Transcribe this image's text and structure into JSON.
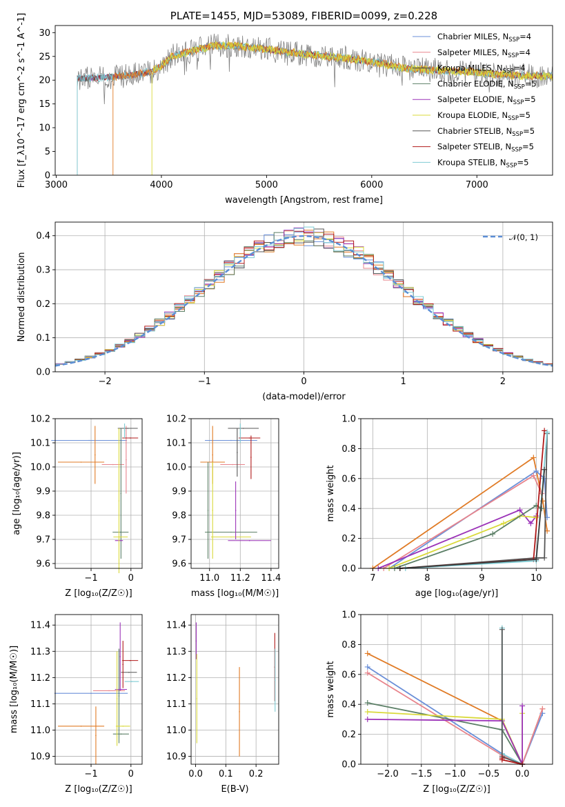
{
  "colors": {
    "chabrier_miles": "#6a8fd8",
    "salpeter_miles": "#e8848c",
    "kroupa_miles": "#3b3b3b",
    "chabrier_elodie": "#5b7f66",
    "salpeter_elodie": "#9b32b8",
    "kroupa_elodie": "#d9d93a",
    "chabrier_stelib": "#555555",
    "salpeter_stelib": "#b01818",
    "kroupa_stelib": "#7ecbd3",
    "orange": "#e07a24",
    "gray_spec": "#808080",
    "normal_curve": "#5b8ed6"
  },
  "chart_data": [
    {
      "id": "spectrum",
      "type": "line",
      "title": "PLATE=1455, MJD=53089, FIBERID=0099, z=0.228",
      "xlabel": "wavelength [Angstrom, rest frame]",
      "ylabel": "Flux [f_λ10^-17 erg cm^-2 s^-1 A^-1]",
      "xlim": [
        2990,
        7720
      ],
      "ylim": [
        0,
        31.5
      ],
      "xticks": [
        "3000",
        "4000",
        "5000",
        "6000",
        "7000"
      ],
      "yticks": [
        "0",
        "5",
        "10",
        "15",
        "20",
        "25",
        "30"
      ],
      "legend_position": "top-right",
      "legend": [
        {
          "label": "Chabrier MILES, N",
          "sub": "SSP",
          "tail": "=4",
          "color_key": "chabrier_miles"
        },
        {
          "label": "Salpeter MILES, N",
          "sub": "SSP",
          "tail": "=4",
          "color_key": "salpeter_miles"
        },
        {
          "label": "Kroupa MILES, N",
          "sub": "SSP",
          "tail": "=4",
          "color_key": "kroupa_miles"
        },
        {
          "label": "Chabrier ELODIE, N",
          "sub": "SSP",
          "tail": "=5",
          "color_key": "chabrier_elodie"
        },
        {
          "label": "Salpeter ELODIE, N",
          "sub": "SSP",
          "tail": "=5",
          "color_key": "salpeter_elodie"
        },
        {
          "label": "Kroupa ELODIE, N",
          "sub": "SSP",
          "tail": "=5",
          "color_key": "kroupa_elodie"
        },
        {
          "label": "Chabrier STELIB, N",
          "sub": "SSP",
          "tail": "=5",
          "color_key": "chabrier_stelib"
        },
        {
          "label": "Salpeter STELIB, N",
          "sub": "SSP",
          "tail": "=5",
          "color_key": "salpeter_stelib"
        },
        {
          "label": "Kroupa STELIB, N",
          "sub": "SSP",
          "tail": "=5",
          "color_key": "kroupa_stelib"
        }
      ],
      "continuum_x": [
        3200,
        3400,
        3700,
        3900,
        4000,
        4100,
        4300,
        4500,
        4700,
        5000,
        5300,
        5600,
        5900,
        6100,
        6300,
        6500,
        6700,
        6900,
        7100,
        7400,
        7700
      ],
      "continuum_y": [
        20.3,
        20.5,
        21.0,
        21.8,
        23.0,
        25.0,
        26.2,
        27.3,
        27.2,
        26.5,
        25.6,
        25.0,
        24.2,
        23.5,
        22.5,
        22.2,
        22.0,
        21.8,
        21.4,
        21.0,
        20.8
      ],
      "series_start": [
        {
          "color_key": "gray_spec",
          "start": 3200
        },
        {
          "color_key": "kroupa_stelib",
          "start": 3200
        },
        {
          "color_key": "orange",
          "start": 3540
        },
        {
          "color_key": "kroupa_elodie",
          "start": 3910
        }
      ]
    },
    {
      "id": "residual_hist",
      "type": "histogram",
      "xlabel": "(data-model)/error",
      "ylabel": "Normed distribution",
      "xlim": [
        -2.5,
        2.5
      ],
      "ylim": [
        0,
        0.44
      ],
      "xticks": [
        "−2",
        "−1",
        "0",
        "1",
        "2"
      ],
      "yticks": [
        "0.0",
        "0.1",
        "0.2",
        "0.3",
        "0.4"
      ],
      "legend": "𝒩(0, 1)",
      "legend_position": "top-right",
      "bin_width": 0.1,
      "normal_mean": 0,
      "normal_sigma": 1
    },
    {
      "id": "age_vs_Z",
      "type": "errorbar",
      "xlabel": "Z [log₁₀(Z/Z☉)]",
      "ylabel": "age  [log₁₀(age/yr)]",
      "xlim": [
        -1.9,
        0.28
      ],
      "ylim": [
        9.58,
        10.2
      ],
      "xticks": [
        "−1",
        "0"
      ],
      "yticks": [
        "9.6",
        "9.7",
        "9.8",
        "9.9",
        "10.0",
        "10.1",
        "10.2"
      ],
      "points": [
        {
          "x": -1.05,
          "xerr": 0.95,
          "y": 10.11,
          "yerr": 0,
          "color_key": "chabrier_miles"
        },
        {
          "x": -1.25,
          "xerr": 0.58,
          "y": 10.02,
          "yerr": 0,
          "color_key": "orange"
        },
        {
          "x": -0.9,
          "xerr": 0,
          "y": 10.05,
          "yerr": 0.12,
          "color_key": "orange"
        },
        {
          "x": -0.45,
          "xerr": 0.28,
          "y": 10.01,
          "yerr": 0,
          "color_key": "salpeter_miles"
        },
        {
          "x": -0.12,
          "xerr": 0,
          "y": 10.03,
          "yerr": 0.14,
          "color_key": "salpeter_miles"
        },
        {
          "x": -0.08,
          "xerr": 0.25,
          "y": 10.16,
          "yerr": 0,
          "color_key": "chabrier_stelib"
        },
        {
          "x": -0.02,
          "xerr": 0.2,
          "y": 10.12,
          "yerr": 0,
          "color_key": "salpeter_stelib"
        },
        {
          "x": -0.16,
          "xerr": 0,
          "y": 10.15,
          "yerr": 0.03,
          "color_key": "kroupa_stelib"
        },
        {
          "x": -0.25,
          "xerr": 0,
          "y": 9.89,
          "yerr": 0.27,
          "color_key": "chabrier_elodie"
        },
        {
          "x": -0.26,
          "xerr": 0.2,
          "y": 9.73,
          "yerr": 0,
          "color_key": "chabrier_elodie"
        },
        {
          "x": -0.26,
          "xerr": 0.18,
          "y": 9.71,
          "yerr": 0,
          "color_key": "kroupa_elodie"
        },
        {
          "x": -0.3,
          "xerr": 0.1,
          "y": 9.695,
          "yerr": 0,
          "color_key": "salpeter_elodie"
        },
        {
          "x": -0.3,
          "xerr": 0,
          "y": 9.86,
          "yerr": 0.3,
          "color_key": "kroupa_elodie"
        }
      ]
    },
    {
      "id": "age_vs_mass",
      "type": "errorbar",
      "xlabel": "mass [log₁₀(M/M☉)]",
      "ylabel": "",
      "xlim": [
        10.88,
        11.45
      ],
      "ylim": [
        9.58,
        10.2
      ],
      "xticks": [
        "11.0",
        "11.2",
        "11.4"
      ],
      "yticks": [
        "9.6",
        "9.7",
        "9.8",
        "9.9",
        "10.0",
        "10.1",
        "10.2"
      ],
      "points": [
        {
          "x": 11.14,
          "xerr": 0.17,
          "y": 10.11,
          "yerr": 0,
          "color_key": "chabrier_miles"
        },
        {
          "x": 11.02,
          "xerr": 0.08,
          "y": 10.02,
          "yerr": 0,
          "color_key": "orange"
        },
        {
          "x": 11.02,
          "xerr": 0,
          "y": 10.05,
          "yerr": 0.12,
          "color_key": "orange"
        },
        {
          "x": 11.15,
          "xerr": 0.08,
          "y": 10.01,
          "yerr": 0,
          "color_key": "salpeter_miles"
        },
        {
          "x": 11.22,
          "xerr": 0.1,
          "y": 10.16,
          "yerr": 0,
          "color_key": "chabrier_stelib"
        },
        {
          "x": 11.26,
          "xerr": 0.07,
          "y": 10.12,
          "yerr": 0,
          "color_key": "salpeter_stelib"
        },
        {
          "x": 11.27,
          "xerr": 0,
          "y": 10.04,
          "yerr": 0.09,
          "color_key": "salpeter_stelib"
        },
        {
          "x": 11.18,
          "xerr": 0,
          "y": 10.06,
          "yerr": 0.1,
          "color_key": "chabrier_stelib"
        },
        {
          "x": 11.14,
          "xerr": 0.17,
          "y": 9.73,
          "yerr": 0,
          "color_key": "chabrier_elodie"
        },
        {
          "x": 10.99,
          "xerr": 0,
          "y": 9.82,
          "yerr": 0.2,
          "color_key": "chabrier_elodie"
        },
        {
          "x": 11.14,
          "xerr": 0.13,
          "y": 9.71,
          "yerr": 0,
          "color_key": "kroupa_elodie"
        },
        {
          "x": 11.02,
          "xerr": 0,
          "y": 9.82,
          "yerr": 0.2,
          "color_key": "kroupa_elodie"
        },
        {
          "x": 11.26,
          "xerr": 0.14,
          "y": 9.695,
          "yerr": 0,
          "color_key": "salpeter_elodie"
        },
        {
          "x": 11.17,
          "xerr": 0,
          "y": 9.82,
          "yerr": 0.12,
          "color_key": "salpeter_elodie"
        },
        {
          "x": 11.2,
          "xerr": 0,
          "y": 10.14,
          "yerr": 0.04,
          "color_key": "kroupa_stelib"
        }
      ]
    },
    {
      "id": "weight_vs_age",
      "type": "line",
      "xlabel": "age  [log₁₀(age/yr)]",
      "ylabel": "mass weight",
      "xlim": [
        6.78,
        10.3
      ],
      "ylim": [
        0,
        1.0
      ],
      "xticks": [
        "7",
        "8",
        "9",
        "10"
      ],
      "yticks": [
        "0.0",
        "0.2",
        "0.4",
        "0.6",
        "0.8",
        "1.0"
      ],
      "series": [
        {
          "color_key": "orange",
          "x": [
            7.0,
            9.95,
            10.12,
            10.2
          ],
          "y": [
            0.0,
            0.74,
            0.45,
            0.25
          ]
        },
        {
          "color_key": "chabrier_miles",
          "x": [
            7.3,
            10.0,
            10.15,
            10.2
          ],
          "y": [
            0.0,
            0.65,
            0.6,
            0.34
          ]
        },
        {
          "color_key": "salpeter_miles",
          "x": [
            7.2,
            9.95,
            10.1
          ],
          "y": [
            0.0,
            0.62,
            0.5
          ]
        },
        {
          "color_key": "salpeter_elodie",
          "x": [
            7.1,
            9.7,
            9.9,
            10.0
          ],
          "y": [
            0.0,
            0.39,
            0.3,
            0.35
          ]
        },
        {
          "color_key": "kroupa_elodie",
          "x": [
            7.3,
            9.4,
            9.7,
            10.0
          ],
          "y": [
            0.0,
            0.3,
            0.35,
            0.34
          ]
        },
        {
          "color_key": "chabrier_elodie",
          "x": [
            7.4,
            9.2,
            10.0,
            10.1
          ],
          "y": [
            0.0,
            0.23,
            0.42,
            0.4
          ]
        },
        {
          "color_key": "chabrier_stelib",
          "x": [
            7.5,
            10.0,
            10.15,
            10.2
          ],
          "y": [
            0.0,
            0.07,
            0.07,
            0.9
          ]
        },
        {
          "color_key": "salpeter_stelib",
          "x": [
            7.5,
            9.95,
            10.15
          ],
          "y": [
            0.0,
            0.06,
            0.92
          ]
        },
        {
          "color_key": "kroupa_stelib",
          "x": [
            7.6,
            10.0,
            10.2
          ],
          "y": [
            0.0,
            0.05,
            0.91
          ]
        },
        {
          "color_key": "kroupa_miles",
          "x": [
            7.5,
            10.0,
            10.15
          ],
          "y": [
            0.0,
            0.06,
            0.66
          ]
        }
      ]
    },
    {
      "id": "mass_vs_Z",
      "type": "errorbar",
      "xlabel": "Z [log₁₀(Z/Z☉)]",
      "ylabel": "mass [log₁₀(M/M☉)]",
      "xlim": [
        -1.9,
        0.28
      ],
      "ylim": [
        10.87,
        11.44
      ],
      "xticks": [
        "−1",
        "0"
      ],
      "yticks": [
        "10.9",
        "11.0",
        "11.1",
        "11.2",
        "11.3",
        "11.4"
      ],
      "points": [
        {
          "x": -1.25,
          "xerr": 0.58,
          "y": 11.015,
          "yerr": 0,
          "color_key": "orange"
        },
        {
          "x": -0.88,
          "xerr": 0,
          "y": 10.98,
          "yerr": 0.11,
          "color_key": "orange"
        },
        {
          "x": -1.0,
          "xerr": 0.92,
          "y": 11.14,
          "yerr": 0,
          "color_key": "chabrier_miles"
        },
        {
          "x": -0.55,
          "xerr": 0.4,
          "y": 11.15,
          "yerr": 0,
          "color_key": "salpeter_miles"
        },
        {
          "x": -0.3,
          "xerr": 0,
          "y": 11.13,
          "yerr": 0.18,
          "color_key": "chabrier_elodie"
        },
        {
          "x": -0.27,
          "xerr": 0,
          "y": 11.28,
          "yerr": 0.13,
          "color_key": "salpeter_elodie"
        },
        {
          "x": -0.25,
          "xerr": 0.15,
          "y": 11.155,
          "yerr": 0,
          "color_key": "salpeter_elodie"
        },
        {
          "x": -0.25,
          "xerr": 0.2,
          "y": 10.985,
          "yerr": 0,
          "color_key": "chabrier_elodie"
        },
        {
          "x": -0.2,
          "xerr": 0.18,
          "y": 11.015,
          "yerr": 0,
          "color_key": "kroupa_elodie"
        },
        {
          "x": -0.35,
          "xerr": 0,
          "y": 11.12,
          "yerr": 0.18,
          "color_key": "kroupa_elodie"
        },
        {
          "x": -0.05,
          "xerr": 0.2,
          "y": 11.22,
          "yerr": 0,
          "color_key": "chabrier_stelib"
        },
        {
          "x": -0.02,
          "xerr": 0.2,
          "y": 11.265,
          "yerr": 0,
          "color_key": "salpeter_stelib"
        },
        {
          "x": -0.2,
          "xerr": 0,
          "y": 11.25,
          "yerr": 0.09,
          "color_key": "salpeter_stelib"
        },
        {
          "x": 0.02,
          "xerr": 0.18,
          "y": 11.185,
          "yerr": 0,
          "color_key": "kroupa_stelib"
        }
      ]
    },
    {
      "id": "mass_vs_ebv",
      "type": "errorbar",
      "xlabel": "E(B-V)",
      "ylabel": "",
      "xlim": [
        -0.015,
        0.275
      ],
      "ylim": [
        10.87,
        11.44
      ],
      "xticks": [
        "0.0",
        "0.1",
        "0.2"
      ],
      "yticks": [
        "10.9",
        "11.0",
        "11.1",
        "11.2",
        "11.3",
        "11.4"
      ],
      "points": [
        {
          "x": 0.002,
          "xerr": 0,
          "y": 11.34,
          "yerr": 0.07,
          "color_key": "salpeter_elodie"
        },
        {
          "x": 0.004,
          "xerr": 0,
          "y": 11.12,
          "yerr": 0.17,
          "color_key": "kroupa_elodie"
        },
        {
          "x": 0.145,
          "xerr": 0,
          "y": 11.07,
          "yerr": 0.17,
          "color_key": "orange"
        },
        {
          "x": 0.262,
          "xerr": 0,
          "y": 11.24,
          "yerr": 0.13,
          "color_key": "salpeter_stelib"
        },
        {
          "x": 0.263,
          "xerr": 0,
          "y": 11.19,
          "yerr": 0.12,
          "color_key": "kroupa_stelib"
        }
      ]
    },
    {
      "id": "weight_vs_Z",
      "type": "line",
      "xlabel": "Z [log₁₀(Z/Z☉)]",
      "ylabel": "mass weight",
      "xlim": [
        -2.4,
        0.45
      ],
      "ylim": [
        0,
        1.0
      ],
      "xticks": [
        "−2.0",
        "−1.5",
        "−1.0",
        "−0.5",
        "0.0"
      ],
      "yticks": [
        "0.0",
        "0.2",
        "0.4",
        "0.6",
        "0.8",
        "1.0"
      ],
      "series": [
        {
          "color_key": "orange",
          "x": [
            -2.3,
            -0.3,
            0.0,
            0.3
          ],
          "y": [
            0.74,
            0.29,
            0.0,
            0.37
          ]
        },
        {
          "color_key": "chabrier_miles",
          "x": [
            -2.3,
            -0.3,
            0.0,
            0.3
          ],
          "y": [
            0.65,
            0.07,
            0.0,
            0.34
          ]
        },
        {
          "color_key": "salpeter_miles",
          "x": [
            -2.3,
            -0.3,
            0.0,
            0.3
          ],
          "y": [
            0.61,
            0.06,
            0.0,
            0.37
          ]
        },
        {
          "color_key": "chabrier_elodie",
          "x": [
            -2.3,
            -0.3,
            0.0
          ],
          "y": [
            0.41,
            0.23,
            0.0
          ]
        },
        {
          "color_key": "kroupa_elodie",
          "x": [
            -2.3,
            -0.3,
            0.0,
            0.0
          ],
          "y": [
            0.35,
            0.3,
            0.0,
            0.34
          ]
        },
        {
          "color_key": "salpeter_elodie",
          "x": [
            -2.3,
            -0.3,
            0.0,
            0.0
          ],
          "y": [
            0.3,
            0.29,
            0.0,
            0.39
          ]
        },
        {
          "color_key": "kroupa_stelib",
          "x": [
            -0.3,
            -0.3,
            0.0
          ],
          "y": [
            0.91,
            0.07,
            0.0
          ]
        },
        {
          "color_key": "chabrier_stelib",
          "x": [
            -0.3,
            -0.3,
            0.0
          ],
          "y": [
            0.9,
            0.05,
            0.0
          ]
        },
        {
          "color_key": "salpeter_stelib",
          "x": [
            -0.3,
            -0.3,
            0.0
          ],
          "y": [
            0.04,
            0.03,
            0.0
          ]
        }
      ]
    }
  ]
}
